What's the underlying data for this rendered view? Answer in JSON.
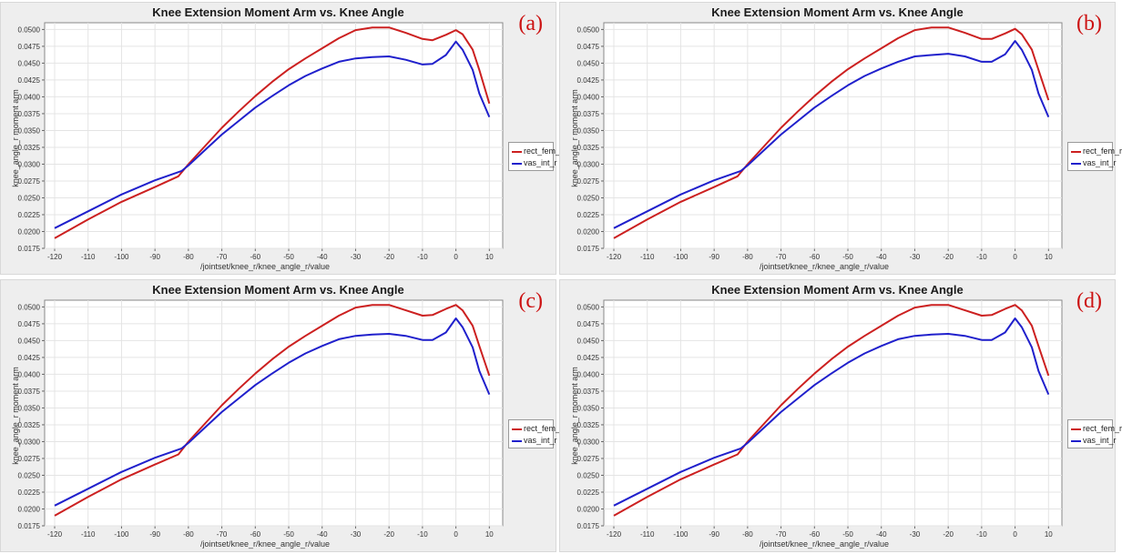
{
  "chart_data": [
    {
      "panel": "(a)",
      "type": "line",
      "title": "Knee Extension Moment Arm vs. Knee Angle",
      "xlabel": "/jointset/knee_r/knee_angle_r/value",
      "ylabel": "knee_angle_r moment arm",
      "xlim": [
        -123,
        14
      ],
      "ylim": [
        0.0175,
        0.051
      ],
      "xticks": [
        -120,
        -110,
        -100,
        -90,
        -80,
        -70,
        -60,
        -50,
        -40,
        -30,
        -20,
        -10,
        0,
        10
      ],
      "yticks": [
        "0.0175",
        "0.0200",
        "0.0225",
        "0.0250",
        "0.0275",
        "0.0300",
        "0.0325",
        "0.0350",
        "0.0375",
        "0.0400",
        "0.0425",
        "0.0450",
        "0.0475",
        "0.0500"
      ],
      "grid": true,
      "legend_position": "right",
      "series": [
        {
          "name": "rect_fem_r",
          "color": "#cc2020",
          "x": [
            -120,
            -110,
            -100,
            -90,
            -83,
            -80,
            -75,
            -70,
            -65,
            -60,
            -55,
            -50,
            -45,
            -40,
            -35,
            -30,
            -25,
            -20,
            -15,
            -10,
            -7,
            -3,
            0,
            2,
            5,
            7,
            10
          ],
          "y": [
            0.019,
            0.0218,
            0.0244,
            0.0266,
            0.0282,
            0.03,
            0.0327,
            0.0354,
            0.0378,
            0.0401,
            0.0422,
            0.0441,
            0.0457,
            0.0472,
            0.0487,
            0.0499,
            0.0503,
            0.0503,
            0.0495,
            0.0486,
            0.0484,
            0.0492,
            0.0499,
            0.0493,
            0.047,
            0.044,
            0.039
          ]
        },
        {
          "name": "vas_int_r",
          "color": "#2020cc",
          "x": [
            -120,
            -110,
            -100,
            -90,
            -82,
            -80,
            -75,
            -70,
            -65,
            -60,
            -55,
            -50,
            -45,
            -40,
            -35,
            -30,
            -25,
            -20,
            -15,
            -10,
            -7,
            -3,
            0,
            2,
            5,
            7,
            10
          ],
          "y": [
            0.0205,
            0.023,
            0.0255,
            0.0276,
            0.029,
            0.0298,
            0.0321,
            0.0344,
            0.0364,
            0.0384,
            0.0401,
            0.0417,
            0.0431,
            0.0442,
            0.0452,
            0.0457,
            0.0459,
            0.046,
            0.0455,
            0.0448,
            0.0449,
            0.0462,
            0.0482,
            0.047,
            0.044,
            0.0405,
            0.037
          ]
        }
      ]
    },
    {
      "panel": "(b)",
      "type": "line",
      "title": "Knee Extension Moment Arm vs. Knee Angle",
      "xlabel": "/jointset/knee_r/knee_angle_r/value",
      "ylabel": "knee_angle_r moment arm",
      "xlim": [
        -123,
        14
      ],
      "ylim": [
        0.0175,
        0.051
      ],
      "xticks": [
        -120,
        -110,
        -100,
        -90,
        -80,
        -70,
        -60,
        -50,
        -40,
        -30,
        -20,
        -10,
        0,
        10
      ],
      "yticks": [
        "0.0175",
        "0.0200",
        "0.0225",
        "0.0250",
        "0.0275",
        "0.0300",
        "0.0325",
        "0.0350",
        "0.0375",
        "0.0400",
        "0.0425",
        "0.0450",
        "0.0475",
        "0.0500"
      ],
      "grid": true,
      "legend_position": "right",
      "series": [
        {
          "name": "rect_fem_r",
          "color": "#cc2020",
          "x": [
            -120,
            -110,
            -100,
            -90,
            -83,
            -80,
            -75,
            -70,
            -65,
            -60,
            -55,
            -50,
            -45,
            -40,
            -35,
            -30,
            -25,
            -20,
            -15,
            -10,
            -7,
            -3,
            0,
            2,
            5,
            7,
            10
          ],
          "y": [
            0.019,
            0.0218,
            0.0244,
            0.0266,
            0.0282,
            0.03,
            0.0327,
            0.0354,
            0.0378,
            0.0401,
            0.0422,
            0.0441,
            0.0457,
            0.0472,
            0.0487,
            0.0499,
            0.0503,
            0.0503,
            0.0495,
            0.0486,
            0.0486,
            0.0494,
            0.0501,
            0.0493,
            0.047,
            0.044,
            0.0395
          ]
        },
        {
          "name": "vas_int_r",
          "color": "#2020cc",
          "x": [
            -120,
            -110,
            -100,
            -90,
            -82,
            -80,
            -75,
            -70,
            -65,
            -60,
            -55,
            -50,
            -45,
            -40,
            -35,
            -30,
            -25,
            -20,
            -15,
            -10,
            -7,
            -3,
            0,
            2,
            5,
            7,
            10
          ],
          "y": [
            0.0205,
            0.023,
            0.0255,
            0.0276,
            0.029,
            0.0298,
            0.0321,
            0.0344,
            0.0364,
            0.0384,
            0.0401,
            0.0417,
            0.0431,
            0.0442,
            0.0452,
            0.046,
            0.0462,
            0.0464,
            0.046,
            0.0452,
            0.0452,
            0.0463,
            0.0483,
            0.047,
            0.044,
            0.0405,
            0.037
          ]
        }
      ]
    },
    {
      "panel": "(c)",
      "type": "line",
      "title": "Knee Extension Moment Arm vs. Knee Angle",
      "xlabel": "/jointset/knee_r/knee_angle_r/value",
      "ylabel": "knee_angle_r moment arm",
      "xlim": [
        -123,
        14
      ],
      "ylim": [
        0.0175,
        0.051
      ],
      "xticks": [
        -120,
        -110,
        -100,
        -90,
        -80,
        -70,
        -60,
        -50,
        -40,
        -30,
        -20,
        -10,
        0,
        10
      ],
      "yticks": [
        "0.0175",
        "0.0200",
        "0.0225",
        "0.0250",
        "0.0275",
        "0.0300",
        "0.0325",
        "0.0350",
        "0.0375",
        "0.0400",
        "0.0425",
        "0.0450",
        "0.0475",
        "0.0500"
      ],
      "grid": true,
      "legend_position": "right",
      "series": [
        {
          "name": "rect_fem_r",
          "color": "#cc2020",
          "x": [
            -120,
            -110,
            -100,
            -90,
            -83,
            -80,
            -75,
            -70,
            -65,
            -60,
            -55,
            -50,
            -45,
            -40,
            -35,
            -30,
            -25,
            -20,
            -15,
            -10,
            -7,
            -3,
            0,
            2,
            5,
            7,
            10
          ],
          "y": [
            0.019,
            0.0218,
            0.0244,
            0.0266,
            0.0281,
            0.03,
            0.0327,
            0.0354,
            0.0378,
            0.0401,
            0.0422,
            0.0441,
            0.0457,
            0.0472,
            0.0487,
            0.0499,
            0.0503,
            0.0503,
            0.0495,
            0.0487,
            0.0488,
            0.0497,
            0.0503,
            0.0495,
            0.0472,
            0.0442,
            0.0398
          ]
        },
        {
          "name": "vas_int_r",
          "color": "#2020cc",
          "x": [
            -120,
            -110,
            -100,
            -90,
            -82,
            -80,
            -75,
            -70,
            -65,
            -60,
            -55,
            -50,
            -45,
            -40,
            -35,
            -30,
            -25,
            -20,
            -15,
            -10,
            -7,
            -3,
            0,
            2,
            5,
            7,
            10
          ],
          "y": [
            0.0205,
            0.023,
            0.0255,
            0.0276,
            0.029,
            0.0298,
            0.0321,
            0.0344,
            0.0364,
            0.0384,
            0.0401,
            0.0417,
            0.0431,
            0.0442,
            0.0452,
            0.0457,
            0.0459,
            0.046,
            0.0457,
            0.0451,
            0.0451,
            0.0462,
            0.0483,
            0.047,
            0.044,
            0.0405,
            0.037
          ]
        }
      ]
    },
    {
      "panel": "(d)",
      "type": "line",
      "title": "Knee Extension Moment Arm vs. Knee Angle",
      "xlabel": "/jointset/knee_r/knee_angle_r/value",
      "ylabel": "knee_angle_r moment arm",
      "xlim": [
        -123,
        14
      ],
      "ylim": [
        0.0175,
        0.051
      ],
      "xticks": [
        -120,
        -110,
        -100,
        -90,
        -80,
        -70,
        -60,
        -50,
        -40,
        -30,
        -20,
        -10,
        0,
        10
      ],
      "yticks": [
        "0.0175",
        "0.0200",
        "0.0225",
        "0.0250",
        "0.0275",
        "0.0300",
        "0.0325",
        "0.0350",
        "0.0375",
        "0.0400",
        "0.0425",
        "0.0450",
        "0.0475",
        "0.0500"
      ],
      "grid": true,
      "legend_position": "right",
      "series": [
        {
          "name": "rect_fem_r",
          "color": "#cc2020",
          "x": [
            -120,
            -110,
            -100,
            -90,
            -83,
            -80,
            -75,
            -70,
            -65,
            -60,
            -55,
            -50,
            -45,
            -40,
            -35,
            -30,
            -25,
            -20,
            -15,
            -10,
            -7,
            -3,
            0,
            2,
            5,
            7,
            10
          ],
          "y": [
            0.019,
            0.0218,
            0.0244,
            0.0266,
            0.0281,
            0.03,
            0.0327,
            0.0354,
            0.0378,
            0.0401,
            0.0422,
            0.0441,
            0.0457,
            0.0472,
            0.0487,
            0.0499,
            0.0503,
            0.0503,
            0.0495,
            0.0487,
            0.0488,
            0.0497,
            0.0503,
            0.0495,
            0.0472,
            0.0442,
            0.0398
          ]
        },
        {
          "name": "vas_int_r",
          "color": "#2020cc",
          "x": [
            -120,
            -110,
            -100,
            -90,
            -82,
            -80,
            -75,
            -70,
            -65,
            -60,
            -55,
            -50,
            -45,
            -40,
            -35,
            -30,
            -25,
            -20,
            -15,
            -10,
            -7,
            -3,
            0,
            2,
            5,
            7,
            10
          ],
          "y": [
            0.0205,
            0.023,
            0.0255,
            0.0276,
            0.029,
            0.0298,
            0.0321,
            0.0344,
            0.0364,
            0.0384,
            0.0401,
            0.0417,
            0.0431,
            0.0442,
            0.0452,
            0.0457,
            0.0459,
            0.046,
            0.0457,
            0.0451,
            0.0451,
            0.0462,
            0.0483,
            0.047,
            0.044,
            0.0405,
            0.037
          ]
        }
      ]
    }
  ]
}
